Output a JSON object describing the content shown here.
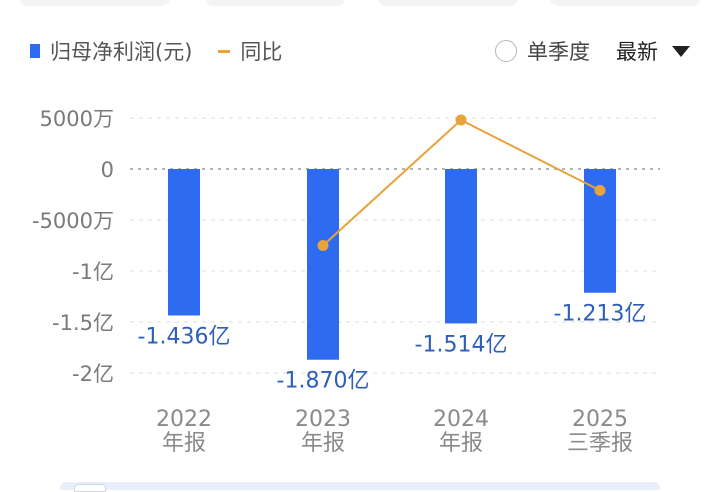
{
  "legend": {
    "bar_label": "归母净利润(元)",
    "line_label": "同比"
  },
  "controls": {
    "single_quarter_label": "单季度",
    "sort_label": "最新"
  },
  "colors": {
    "bar": "#2f6bf0",
    "line": "#e8a33a",
    "data_label": "#2d5fb8"
  },
  "chart_data": {
    "type": "bar",
    "categories": [
      [
        "2022",
        "年报"
      ],
      [
        "2023",
        "年报"
      ],
      [
        "2024",
        "年报"
      ],
      [
        "2025",
        "三季报"
      ]
    ],
    "series": [
      {
        "name": "归母净利润(元)",
        "type": "bar",
        "values": [
          -1.436,
          -1.87,
          -1.514,
          -1.213
        ],
        "unit": "亿",
        "labels": [
          "-1.436亿",
          "-1.870亿",
          "-1.514亿",
          "-1.213亿"
        ]
      },
      {
        "name": "同比",
        "type": "line",
        "values": [
          null,
          -0.75,
          0.48,
          -0.21
        ]
      }
    ],
    "yaxis": {
      "ticks": [
        0.5,
        0,
        -0.5,
        -1,
        -1.5,
        -2
      ],
      "tick_labels": [
        "5000万",
        "0",
        "-5000万",
        "-1亿",
        "-1.5亿",
        "-2亿"
      ],
      "ylim": [
        -2,
        0.5
      ],
      "grid": true
    },
    "legend_position": "top-left"
  }
}
